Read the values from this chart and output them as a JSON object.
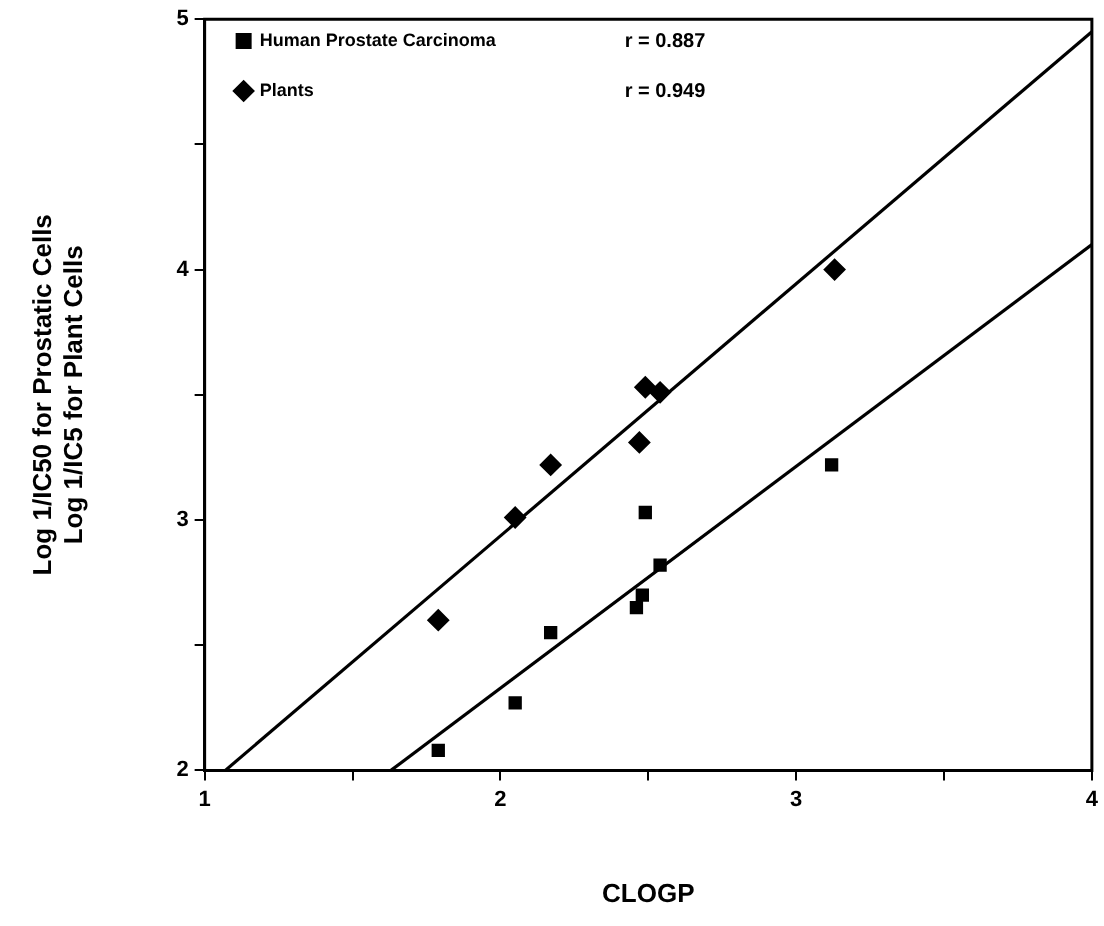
{
  "chart_data": {
    "type": "scatter",
    "xlabel": "CLOGP",
    "ylabel": "Log 1/IC50 for Prostatic Cells\nLog 1/IC5 for Plant Cells",
    "xlim": [
      1,
      4
    ],
    "ylim": [
      2,
      5
    ],
    "xticks": [
      1,
      {
        "value": 1.5,
        "label": null
      },
      2,
      {
        "value": 2.5,
        "label": null
      },
      3,
      {
        "value": 3.5,
        "label": null
      },
      4
    ],
    "yticks": [
      2,
      {
        "value": 2.5,
        "label": null
      },
      3,
      {
        "value": 3.5,
        "label": null
      },
      4,
      {
        "value": 4.5,
        "label": null
      },
      5
    ],
    "grid": false,
    "legend": "top left",
    "annotations": [
      "r = 0.887",
      "r = 0.949"
    ],
    "series": [
      {
        "name": "Human Prostate Carcinoma",
        "color": "#000000",
        "marker": "square",
        "x": [
          1.79,
          2.05,
          2.17,
          2.46,
          2.48,
          2.54,
          2.49,
          3.12
        ],
        "values": [
          2.08,
          2.27,
          2.55,
          2.65,
          2.7,
          2.82,
          3.03,
          3.22
        ]
      },
      {
        "name": "Plants",
        "color": "#000000",
        "marker": "diamond",
        "x": [
          1.79,
          2.05,
          2.17,
          2.47,
          2.49,
          2.54,
          3.13
        ],
        "values": [
          2.6,
          3.01,
          3.22,
          3.31,
          3.53,
          3.51,
          4.0
        ]
      },
      {
        "type": "line",
        "color": "#000000",
        "marker": "none",
        "x": [
          1.63,
          4
        ],
        "values": [
          2,
          4.1
        ]
      },
      {
        "type": "line",
        "color": "#000000",
        "marker": "none",
        "x": [
          1.07,
          4
        ],
        "values": [
          2,
          4.95
        ]
      }
    ]
  }
}
